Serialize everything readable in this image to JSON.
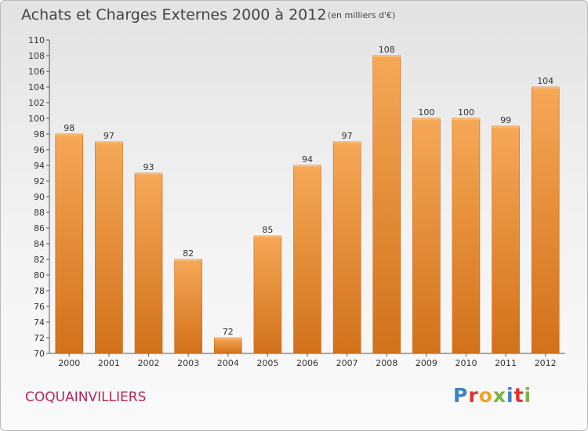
{
  "header": {
    "title": "Achats et Charges Externes 2000 à 2012",
    "subtitle": "(en milliers d'€)"
  },
  "footer": {
    "commune": "COQUAINVILLIERS",
    "logo": "Proxiti"
  },
  "colors": {
    "bar_light": "#f6a857",
    "bar_dark": "#d2711a",
    "commune_text": "#b4265c",
    "logo_letters": [
      "#3b82c4",
      "#e0332c",
      "#f2a12c",
      "#7cb342",
      "#3b82c4",
      "#e0332c",
      "#7cb342"
    ]
  },
  "chart_data": {
    "type": "bar",
    "title": "Achats et Charges Externes 2000 à 2012",
    "subtitle": "(en milliers d'€)",
    "xlabel": "",
    "ylabel": "",
    "categories": [
      "2000",
      "2001",
      "2002",
      "2003",
      "2004",
      "2005",
      "2006",
      "2007",
      "2008",
      "2009",
      "2010",
      "2011",
      "2012"
    ],
    "values": [
      98,
      97,
      93,
      82,
      72,
      85,
      94,
      97,
      108,
      100,
      100,
      99,
      104
    ],
    "ylim": [
      70,
      110
    ],
    "yticks": [
      70,
      72,
      74,
      76,
      78,
      80,
      82,
      84,
      86,
      88,
      90,
      92,
      94,
      96,
      98,
      100,
      102,
      104,
      106,
      108,
      110
    ],
    "grid": false,
    "legend": "none"
  }
}
